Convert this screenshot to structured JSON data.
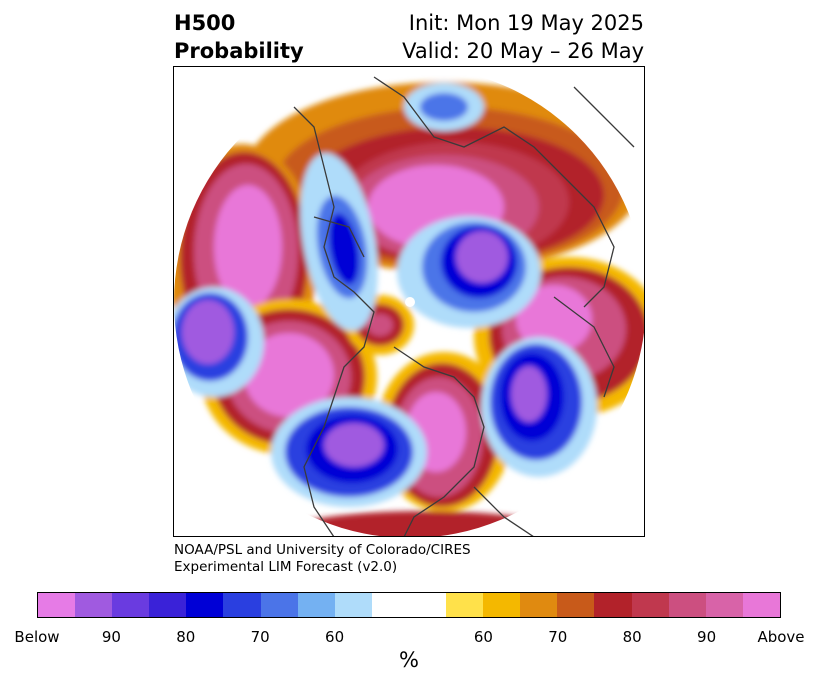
{
  "title": {
    "left_line1": "H500",
    "left_line2": "Probability",
    "right_line1": "Init: Mon 19 May 2025",
    "right_line2": "Valid: 20 May – 26 May"
  },
  "credit": {
    "line1": "NOAA/PSL and University of Colorado/CIRES",
    "line2": "Experimental LIM Forecast (v2.0)"
  },
  "colorbar": {
    "colors": [
      "#e67be6",
      "#a05ae0",
      "#6a3be0",
      "#3a22d8",
      "#0000d6",
      "#2a3fe0",
      "#4b74e8",
      "#74b1f2",
      "#afdcfa",
      "#ffffff",
      "#ffe14a",
      "#f4b800",
      "#e08a10",
      "#c85a1a",
      "#b2222a",
      "#c0384e",
      "#cc4f80",
      "#d863a8",
      "#e877d8"
    ],
    "tick_labels": [
      "Below",
      "90",
      "80",
      "70",
      "60",
      "60",
      "70",
      "80",
      "90",
      "Above"
    ],
    "unit": "%"
  },
  "map": {
    "projection": "north-polar-stereographic",
    "field": "500-hPa height anomaly probability"
  }
}
